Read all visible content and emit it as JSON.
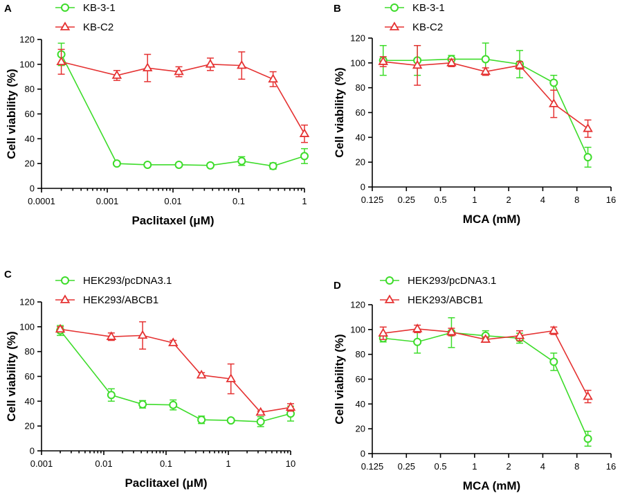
{
  "chart_data": [
    {
      "panel": "A",
      "type": "line",
      "xscale": "log10",
      "xlim": [
        0.0001,
        1
      ],
      "ylim": [
        0,
        120
      ],
      "xticks": [
        {
          "value": 0.0001,
          "label": "0.0001"
        },
        {
          "value": 0.001,
          "label": "0.001"
        },
        {
          "value": 0.01,
          "label": "0.01"
        },
        {
          "value": 0.1,
          "label": "0.1"
        },
        {
          "value": 1,
          "label": "1"
        }
      ],
      "yticks": [
        0,
        20,
        40,
        60,
        80,
        100,
        120
      ],
      "xlabel": "Paclitaxel (μM)",
      "ylabel": "Cell viability (%)",
      "legend": "top-left",
      "series": [
        {
          "name": "KB-3-1",
          "color": "#3ddc2a",
          "marker": "circle",
          "x": [
            0.0002,
            0.0014,
            0.0041,
            0.0123,
            0.037,
            0.111,
            0.333,
            1
          ],
          "y": [
            108,
            20,
            19,
            19,
            18.5,
            22,
            18,
            26
          ],
          "err": [
            9,
            1,
            1,
            1,
            1,
            3.5,
            2.5,
            6
          ]
        },
        {
          "name": "KB-C2",
          "color": "#e53232",
          "marker": "triangle",
          "x": [
            0.0002,
            0.0014,
            0.0041,
            0.0123,
            0.037,
            0.111,
            0.333,
            1
          ],
          "y": [
            102,
            91,
            97,
            94,
            100,
            99,
            88,
            44
          ],
          "err": [
            10,
            4,
            11,
            4,
            5,
            11,
            6,
            7
          ]
        }
      ]
    },
    {
      "panel": "B",
      "type": "line",
      "xscale": "log2",
      "xlim": [
        0.125,
        16
      ],
      "ylim": [
        0,
        120
      ],
      "xticks": [
        {
          "value": 0.125,
          "label": "0.125"
        },
        {
          "value": 0.25,
          "label": "0.25"
        },
        {
          "value": 0.5,
          "label": "0.5"
        },
        {
          "value": 1,
          "label": "1"
        },
        {
          "value": 2,
          "label": "2"
        },
        {
          "value": 4,
          "label": "4"
        },
        {
          "value": 8,
          "label": "8"
        },
        {
          "value": 16,
          "label": "16"
        }
      ],
      "yticks": [
        0,
        20,
        40,
        60,
        80,
        100,
        120
      ],
      "xlabel": "MCA (mM)",
      "ylabel": "Cell viability (%)",
      "legend": "top-left",
      "series": [
        {
          "name": "KB-3-1",
          "color": "#3ddc2a",
          "marker": "circle",
          "x": [
            0.156,
            0.3125,
            0.625,
            1.25,
            2.5,
            5,
            10
          ],
          "y": [
            102,
            102,
            103,
            103,
            99,
            84,
            24
          ],
          "err": [
            12,
            12,
            3,
            13,
            11,
            6,
            8
          ]
        },
        {
          "name": "KB-C2",
          "color": "#e53232",
          "marker": "triangle",
          "x": [
            0.156,
            0.3125,
            0.625,
            1.25,
            2.5,
            5,
            10
          ],
          "y": [
            101,
            98,
            100,
            93,
            98,
            67,
            47
          ],
          "err": [
            4,
            16,
            3,
            3,
            3,
            11,
            7
          ]
        }
      ]
    },
    {
      "panel": "C",
      "type": "line",
      "xscale": "log10",
      "xlim": [
        0.001,
        10
      ],
      "ylim": [
        0,
        120
      ],
      "xticks": [
        {
          "value": 0.001,
          "label": "0.001"
        },
        {
          "value": 0.01,
          "label": "0.01"
        },
        {
          "value": 0.1,
          "label": "0.1"
        },
        {
          "value": 1,
          "label": "1"
        },
        {
          "value": 10,
          "label": "10"
        }
      ],
      "yticks": [
        0,
        20,
        40,
        60,
        80,
        100,
        120
      ],
      "xlabel": "Paclitaxel (μM)",
      "ylabel": "Cell viability (%)",
      "legend": "top-left",
      "series": [
        {
          "name": "HEK293/pcDNA3.1",
          "color": "#3ddc2a",
          "marker": "circle",
          "x": [
            0.002,
            0.0132,
            0.042,
            0.13,
            0.37,
            1.1,
            3.3,
            10
          ],
          "y": [
            97,
            45,
            37.5,
            37,
            25,
            24.5,
            23.5,
            30
          ],
          "err": [
            4,
            5,
            3,
            4,
            3,
            1,
            4,
            6
          ]
        },
        {
          "name": "HEK293/ABCB1",
          "color": "#e53232",
          "marker": "triangle",
          "x": [
            0.002,
            0.0132,
            0.042,
            0.13,
            0.37,
            1.1,
            3.3,
            10
          ],
          "y": [
            98,
            92,
            93,
            87,
            61,
            58,
            31,
            35
          ],
          "err": [
            2,
            3,
            11,
            2,
            2,
            12,
            1,
            3
          ]
        }
      ]
    },
    {
      "panel": "D",
      "type": "line",
      "xscale": "log2",
      "xlim": [
        0.125,
        16
      ],
      "ylim": [
        0,
        120
      ],
      "xticks": [
        {
          "value": 0.125,
          "label": "0.125"
        },
        {
          "value": 0.25,
          "label": "0.25"
        },
        {
          "value": 0.5,
          "label": "0.5"
        },
        {
          "value": 1,
          "label": "1"
        },
        {
          "value": 2,
          "label": "2"
        },
        {
          "value": 4,
          "label": "4"
        },
        {
          "value": 8,
          "label": "8"
        },
        {
          "value": 16,
          "label": "16"
        }
      ],
      "yticks": [
        0,
        20,
        40,
        60,
        80,
        100,
        120
      ],
      "xlabel": "MCA (mM)",
      "ylabel": "Cell viability (%)",
      "legend": "top-left",
      "series": [
        {
          "name": "HEK293/pcDNA3.1",
          "color": "#3ddc2a",
          "marker": "circle",
          "x": [
            0.156,
            0.3125,
            0.625,
            1.25,
            2.5,
            5,
            10
          ],
          "y": [
            93,
            90,
            97.5,
            95,
            93,
            74,
            12
          ],
          "err": [
            3,
            9,
            12,
            4,
            4,
            7,
            6
          ]
        },
        {
          "name": "HEK293/ABCB1",
          "color": "#e53232",
          "marker": "triangle",
          "x": [
            0.156,
            0.3125,
            0.625,
            1.25,
            2.5,
            5,
            10
          ],
          "y": [
            97,
            100.5,
            98,
            92,
            95,
            99,
            46
          ],
          "err": [
            5,
            3,
            3,
            2,
            4,
            3,
            5
          ]
        }
      ]
    }
  ]
}
